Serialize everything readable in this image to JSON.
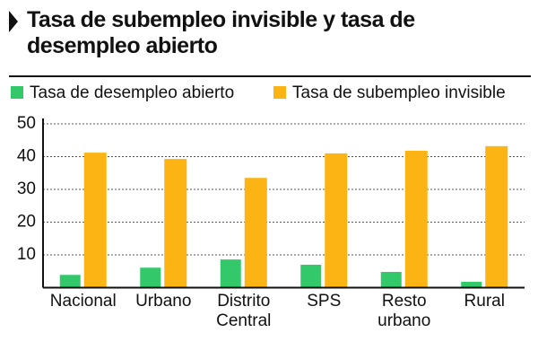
{
  "chart_data": {
    "type": "bar",
    "title": "Tasa de subempleo invisible y tasa de desempleo abierto",
    "categories": [
      "Nacional",
      "Urbano",
      "Distrito Central",
      "SPS",
      "Resto urbano",
      "Rural"
    ],
    "series": [
      {
        "name": "Tasa de desempleo abierto",
        "color": "#33c96b",
        "values": [
          3.9,
          6.1,
          8.6,
          7.0,
          4.8,
          1.8
        ]
      },
      {
        "name": "Tasa de subempleo invisible",
        "color": "#fbb414",
        "values": [
          41.2,
          39.3,
          33.5,
          41.0,
          41.8,
          43.2
        ]
      }
    ],
    "ylim": [
      0,
      50
    ],
    "yticks": [
      10,
      20,
      30,
      40,
      50
    ],
    "grid": true
  }
}
